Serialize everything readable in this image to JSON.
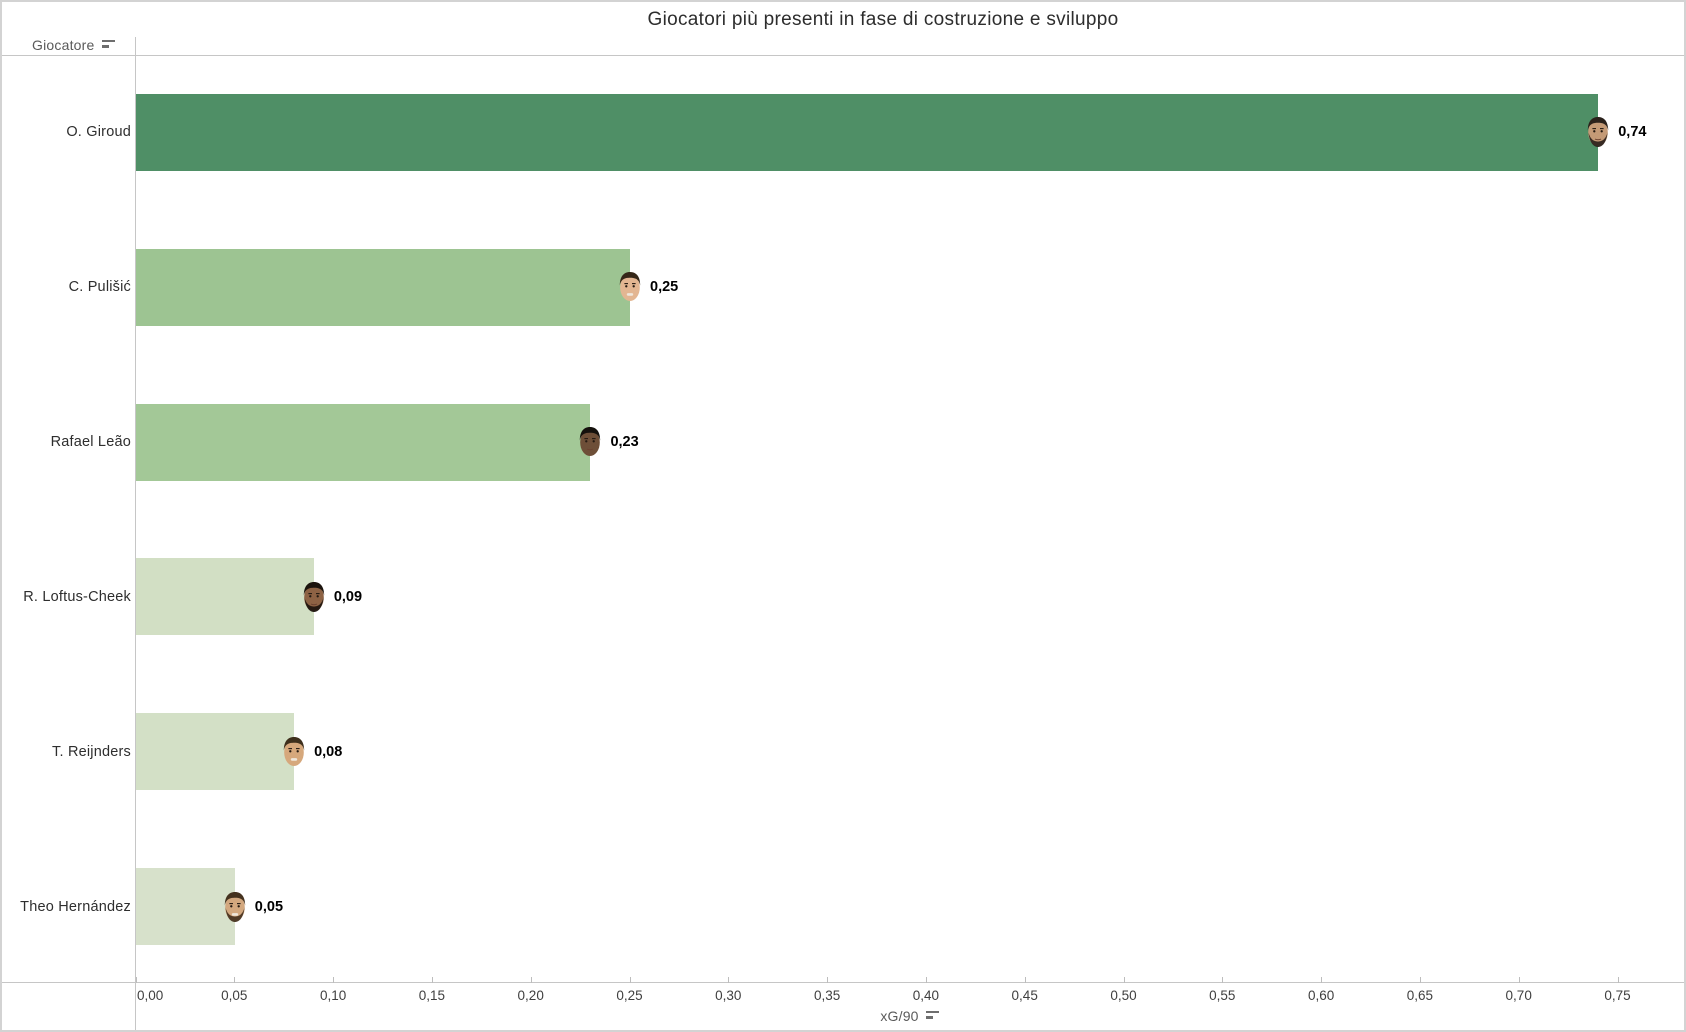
{
  "page": {
    "background": "#ffffff",
    "border_color": "#d3d3d3"
  },
  "chart_data": {
    "type": "bar",
    "orientation": "horizontal",
    "title": "Giocatori più presenti in fase di costruzione e sviluppo",
    "y_axis": {
      "title": "Giocatore"
    },
    "x_axis": {
      "title": "xG/90",
      "min": 0,
      "max": 0.785,
      "tick_step": 0.05,
      "tick_values": [
        0,
        0.05,
        0.1,
        0.15,
        0.2,
        0.25,
        0.3,
        0.35,
        0.4,
        0.45,
        0.5,
        0.55,
        0.6,
        0.65,
        0.7,
        0.75
      ],
      "tick_labels": [
        "0,00",
        "0,05",
        "0,10",
        "0,15",
        "0,20",
        "0,25",
        "0,30",
        "0,35",
        "0,40",
        "0,45",
        "0,50",
        "0,55",
        "0,60",
        "0,65",
        "0,70",
        "0,75"
      ]
    },
    "categories": [
      "O. Giroud",
      "C. Pulišić",
      "Rafael Leão",
      "R. Loftus-Cheek",
      "T. Reijnders",
      "Theo Hernández"
    ],
    "values": [
      0.74,
      0.25,
      0.23,
      0.09,
      0.08,
      0.05
    ],
    "value_labels": [
      "0,74",
      "0,25",
      "0,23",
      "0,09",
      "0,08",
      "0,05"
    ],
    "bar_colors": [
      "#4f8f66",
      "#9dc492",
      "#a3c897",
      "#d2dfc4",
      "#d3e0c6",
      "#d7e1cb"
    ],
    "grid": "off",
    "legend": "none",
    "sort": "descending by value"
  },
  "players": [
    {
      "name": "O. Giroud",
      "photo_icon": "player-photo",
      "face": {
        "skin": "#c49a76",
        "hair": "#2a211b",
        "beard": true,
        "smile": false
      }
    },
    {
      "name": "C. Pulišić",
      "photo_icon": "player-photo",
      "face": {
        "skin": "#e3b692",
        "hair": "#352718",
        "beard": false,
        "smile": true
      }
    },
    {
      "name": "Rafael Leão",
      "photo_icon": "player-photo",
      "face": {
        "skin": "#6e4f38",
        "hair": "#15110d",
        "beard": false,
        "smile": false
      }
    },
    {
      "name": "R. Loftus-Cheek",
      "photo_icon": "player-photo",
      "face": {
        "skin": "#8d6244",
        "hair": "#1c140e",
        "beard": true,
        "smile": false
      }
    },
    {
      "name": "T. Reijnders",
      "photo_icon": "player-photo",
      "face": {
        "skin": "#d6a87c",
        "hair": "#3e2f1c",
        "beard": false,
        "smile": true
      }
    },
    {
      "name": "Theo Hernández",
      "photo_icon": "player-photo",
      "face": {
        "skin": "#d3a87f",
        "hair": "#45321f",
        "beard": true,
        "smile": true
      }
    }
  ],
  "icons": {
    "y_axis_sort_filter": "sort-filter-icon",
    "x_axis_sort_filter": "sort-filter-icon"
  },
  "layout_colors": {
    "axis_line": "#c6c6c6",
    "tick_text": "#3f3f3f",
    "axis_title_text": "#5a5a5a",
    "value_text": "#000000"
  }
}
